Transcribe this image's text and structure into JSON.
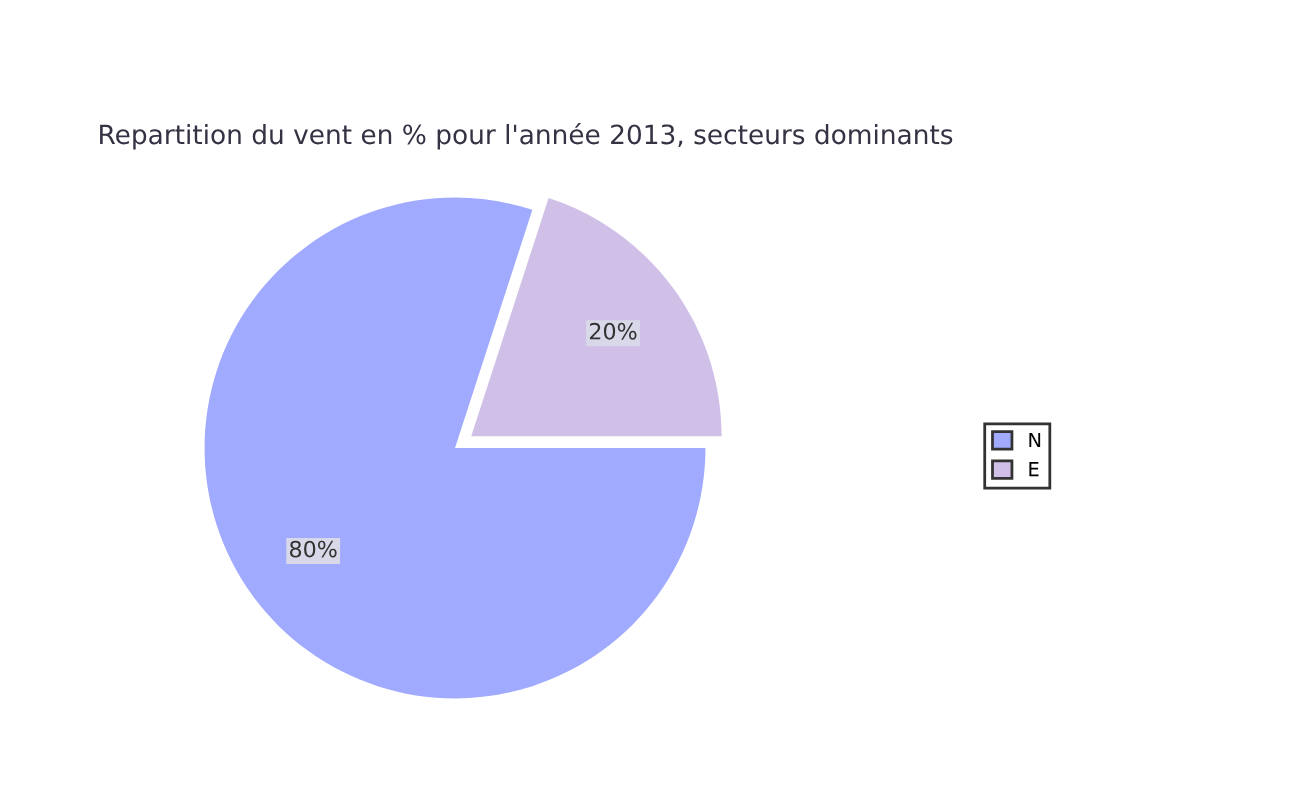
{
  "chart_data": {
    "type": "pie",
    "title": "Repartition du vent en % pour l'année 2013, secteurs dominants",
    "categories": [
      "N",
      "E"
    ],
    "values": [
      80,
      20
    ],
    "colors": [
      "#a0aaff",
      "#d0c0e8"
    ],
    "value_labels": [
      "80%",
      "20%"
    ],
    "legend": "right"
  }
}
